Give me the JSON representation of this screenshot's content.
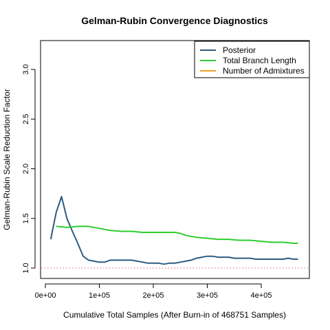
{
  "chart_data": {
    "type": "line",
    "title": "Gelman-Rubin Convergence Diagnostics",
    "xlabel": "Cumulative Total Samples (After Burn-in of 468751 Samples)",
    "ylabel": "Gelman-Rubin Scale Reduction Factor",
    "xlim": [
      0,
      470000
    ],
    "ylim": [
      1.0,
      3.25
    ],
    "x_ticks": [
      0,
      100000,
      200000,
      300000,
      400000
    ],
    "x_tick_labels": [
      "0e+00",
      "1e+05",
      "2e+05",
      "3e+05",
      "4e+05"
    ],
    "y_ticks": [
      1.0,
      1.5,
      2.0,
      2.5,
      3.0
    ],
    "y_tick_labels": [
      "1.0",
      "1.5",
      "2.0",
      "2.5",
      "3.0"
    ],
    "grid": false,
    "legend_position": "top-right",
    "reference_line": {
      "y": 1.0,
      "color": "#e06666",
      "style": "dotted"
    },
    "series": [
      {
        "name": "Posterior",
        "color": "#2b5a80",
        "x": [
          10000,
          20000,
          30000,
          40000,
          50000,
          60000,
          70000,
          80000,
          90000,
          100000,
          110000,
          120000,
          130000,
          140000,
          150000,
          160000,
          170000,
          180000,
          190000,
          200000,
          210000,
          220000,
          230000,
          240000,
          250000,
          260000,
          270000,
          280000,
          290000,
          300000,
          310000,
          320000,
          330000,
          340000,
          350000,
          360000,
          370000,
          380000,
          390000,
          400000,
          410000,
          420000,
          430000,
          440000,
          450000,
          460000,
          468000
        ],
        "y": [
          1.29,
          1.56,
          1.72,
          1.5,
          1.37,
          1.25,
          1.12,
          1.08,
          1.07,
          1.06,
          1.06,
          1.08,
          1.08,
          1.08,
          1.08,
          1.08,
          1.07,
          1.06,
          1.05,
          1.05,
          1.05,
          1.04,
          1.05,
          1.05,
          1.06,
          1.07,
          1.08,
          1.1,
          1.11,
          1.12,
          1.12,
          1.11,
          1.11,
          1.11,
          1.1,
          1.1,
          1.1,
          1.1,
          1.09,
          1.09,
          1.09,
          1.09,
          1.09,
          1.09,
          1.1,
          1.09,
          1.09
        ]
      },
      {
        "name": "Total Branch Length",
        "color": "#2ecc2e",
        "x": [
          20000,
          40000,
          60000,
          80000,
          100000,
          120000,
          140000,
          160000,
          180000,
          200000,
          220000,
          240000,
          250000,
          260000,
          280000,
          300000,
          320000,
          340000,
          360000,
          380000,
          400000,
          420000,
          440000,
          460000,
          468000
        ],
        "y": [
          1.42,
          1.41,
          1.42,
          1.42,
          1.4,
          1.38,
          1.37,
          1.37,
          1.36,
          1.36,
          1.36,
          1.36,
          1.35,
          1.33,
          1.31,
          1.3,
          1.29,
          1.29,
          1.28,
          1.28,
          1.27,
          1.26,
          1.26,
          1.25,
          1.25
        ]
      },
      {
        "name": "Number of Admixtures",
        "color": "#f0a020",
        "x": [],
        "y": []
      }
    ]
  }
}
